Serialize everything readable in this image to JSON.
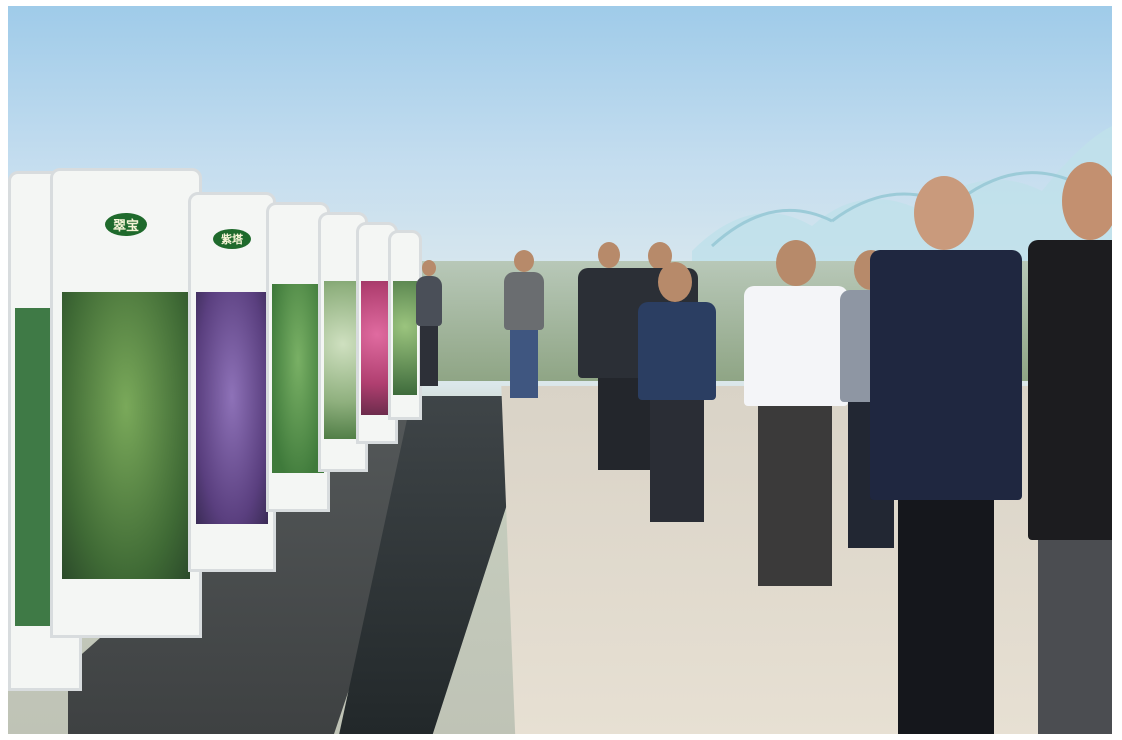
{
  "scene": {
    "description_free": true,
    "sky_color": "#b9d8ee",
    "path_color": "#e3dccf",
    "water_color": "#2a2f31"
  },
  "boards": [
    {
      "tag": "翠宝",
      "plant_color": "#5f9a4a",
      "plant_dark": "#2f5a2a"
    },
    {
      "tag": "紫塔",
      "plant_color": "#6b4f8f",
      "plant_dark": "#3a2b55"
    },
    {
      "tag": "",
      "plant_color": "#5f9a4a",
      "plant_dark": "#2f5a2a"
    },
    {
      "tag": "",
      "plant_color": "#9cc08a",
      "plant_dark": "#4f7d45"
    },
    {
      "tag": "",
      "plant_color": "#c44b7d",
      "plant_dark": "#6a2b4b"
    },
    {
      "tag": "",
      "plant_color": "#7fa867",
      "plant_dark": "#3d6a3b"
    }
  ]
}
